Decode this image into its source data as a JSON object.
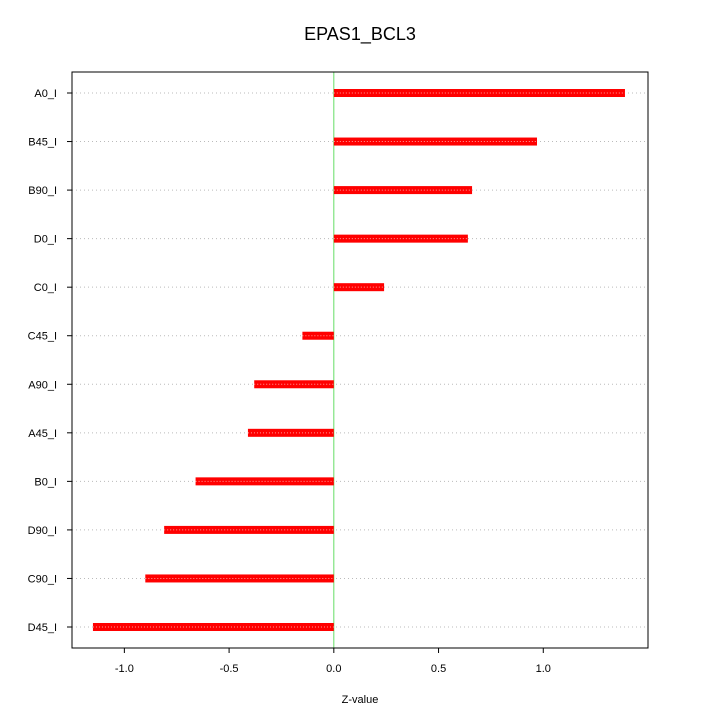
{
  "chart_data": {
    "type": "bar",
    "orientation": "horizontal",
    "title": "EPAS1_BCL3",
    "xlabel": "Z-value",
    "ylabel": "",
    "xlim": [
      -1.25,
      1.5
    ],
    "xticks": [
      -1.0,
      -0.5,
      0.0,
      0.5,
      1.0
    ],
    "xtick_labels": [
      "-1.0",
      "-0.5",
      "0.0",
      "0.5",
      "1.0"
    ],
    "categories": [
      "A0_I",
      "B45_I",
      "B90_I",
      "D0_I",
      "C0_I",
      "C45_I",
      "A90_I",
      "A45_I",
      "B0_I",
      "D90_I",
      "C90_I",
      "D45_I"
    ],
    "values": [
      1.39,
      0.97,
      0.66,
      0.64,
      0.24,
      -0.15,
      -0.38,
      -0.41,
      -0.66,
      -0.81,
      -0.9,
      -1.15
    ],
    "grid": "horizontal-dotted",
    "colors": {
      "bar": "#ff0000",
      "zero_line": "#66dd66",
      "grid": "#bbbbbb"
    }
  }
}
